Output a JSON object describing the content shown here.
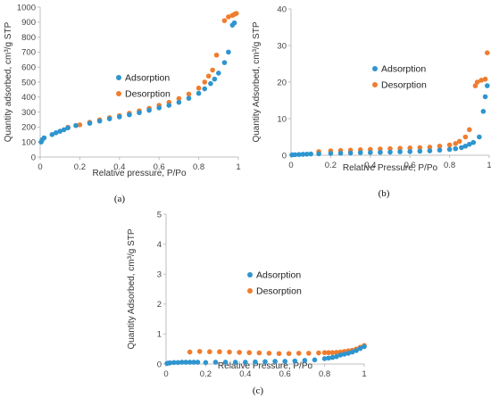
{
  "colors": {
    "adsorption": "#2e95cf",
    "desorption": "#ef7d2e",
    "axis": "#bfbfbf"
  },
  "chart_data": [
    {
      "type": "scatter",
      "panel_label": "(a)",
      "xlabel": "Relative pressure, P/Po",
      "ylabel": "Quantity adsorbed, cm³/g STP",
      "xlim": [
        0,
        1
      ],
      "ylim": [
        0,
        1000
      ],
      "x_ticks": [
        "0",
        "0.2",
        "0.4",
        "0.6",
        "0.8",
        "1"
      ],
      "y_ticks": [
        "0",
        "100",
        "200",
        "300",
        "400",
        "500",
        "600",
        "700",
        "800",
        "900",
        "1000"
      ],
      "legend": {
        "position": "center-left",
        "entries": [
          "Adsorption",
          "Desorption"
        ]
      },
      "series": [
        {
          "name": "Adsorption",
          "x": [
            0.005,
            0.01,
            0.02,
            0.06,
            0.08,
            0.1,
            0.12,
            0.14,
            0.18,
            0.25,
            0.3,
            0.35,
            0.4,
            0.45,
            0.5,
            0.55,
            0.6,
            0.65,
            0.7,
            0.75,
            0.8,
            0.83,
            0.86,
            0.88,
            0.9,
            0.93,
            0.95,
            0.97,
            0.98
          ],
          "y": [
            100,
            115,
            128,
            150,
            162,
            172,
            182,
            195,
            210,
            225,
            240,
            255,
            268,
            282,
            296,
            312,
            328,
            345,
            365,
            392,
            425,
            455,
            490,
            520,
            560,
            630,
            700,
            880,
            895
          ]
        },
        {
          "name": "Desorption",
          "x": [
            0.14,
            0.2,
            0.25,
            0.3,
            0.35,
            0.4,
            0.45,
            0.5,
            0.55,
            0.6,
            0.65,
            0.7,
            0.75,
            0.8,
            0.83,
            0.85,
            0.87,
            0.89,
            0.93,
            0.95,
            0.97,
            0.98,
            0.99
          ],
          "y": [
            198,
            215,
            232,
            248,
            262,
            276,
            292,
            308,
            325,
            345,
            365,
            390,
            420,
            460,
            500,
            540,
            580,
            680,
            910,
            935,
            945,
            952,
            958
          ]
        }
      ]
    },
    {
      "type": "scatter",
      "panel_label": "(b)",
      "xlabel": "Relative Pressure, P/Po",
      "ylabel": "Quantity Adsorbed, cm³/g STP",
      "xlim": [
        0,
        1
      ],
      "ylim": [
        0,
        40
      ],
      "x_ticks": [
        "0",
        "0.2",
        "0.4",
        "0.6",
        "0.8",
        "1"
      ],
      "y_ticks": [
        "0",
        "10",
        "20",
        "30",
        "40"
      ],
      "legend": {
        "position": "center-right",
        "entries": [
          "Adsorption",
          "Desorption"
        ]
      },
      "series": [
        {
          "name": "Adsorption",
          "x": [
            0.005,
            0.02,
            0.04,
            0.06,
            0.08,
            0.1,
            0.14,
            0.2,
            0.25,
            0.3,
            0.35,
            0.4,
            0.45,
            0.5,
            0.55,
            0.6,
            0.65,
            0.7,
            0.75,
            0.8,
            0.83,
            0.86,
            0.88,
            0.9,
            0.92,
            0.95,
            0.97,
            0.98,
            0.99
          ],
          "y": [
            0.1,
            0.15,
            0.2,
            0.25,
            0.3,
            0.35,
            0.4,
            0.5,
            0.55,
            0.6,
            0.7,
            0.75,
            0.8,
            0.85,
            0.95,
            1.0,
            1.1,
            1.2,
            1.4,
            1.6,
            1.8,
            2.1,
            2.5,
            3.0,
            3.5,
            5.0,
            12.0,
            16.0,
            19.0
          ]
        },
        {
          "name": "Desorption",
          "x": [
            0.14,
            0.2,
            0.25,
            0.3,
            0.35,
            0.4,
            0.45,
            0.5,
            0.55,
            0.6,
            0.65,
            0.7,
            0.75,
            0.8,
            0.83,
            0.85,
            0.88,
            0.9,
            0.93,
            0.94,
            0.96,
            0.98,
            0.99
          ],
          "y": [
            1.0,
            1.2,
            1.3,
            1.4,
            1.5,
            1.6,
            1.7,
            1.8,
            1.9,
            2.0,
            2.1,
            2.2,
            2.5,
            2.8,
            3.2,
            3.8,
            5.0,
            7.0,
            19.0,
            20.0,
            20.5,
            20.8,
            28.0
          ]
        }
      ]
    },
    {
      "type": "scatter",
      "panel_label": "(c)",
      "xlabel": "Relative Pressure, P/Po",
      "ylabel": "Quantity Adsorbed, cm³/g STP",
      "xlim": [
        0,
        1
      ],
      "ylim": [
        0,
        5
      ],
      "x_ticks": [
        "0",
        "0.2",
        "0.4",
        "0.6",
        "0.8",
        "1"
      ],
      "y_ticks": [
        "0",
        "1",
        "2",
        "3",
        "4",
        "5"
      ],
      "legend": {
        "position": "center",
        "entries": [
          "Adsorption",
          "Desorption"
        ]
      },
      "series": [
        {
          "name": "Adsorption",
          "x": [
            0.005,
            0.01,
            0.02,
            0.04,
            0.06,
            0.08,
            0.1,
            0.12,
            0.14,
            0.16,
            0.2,
            0.25,
            0.3,
            0.35,
            0.4,
            0.45,
            0.5,
            0.55,
            0.6,
            0.65,
            0.7,
            0.75,
            0.8,
            0.82,
            0.84,
            0.86,
            0.88,
            0.9,
            0.92,
            0.94,
            0.96,
            0.98,
            1.0
          ],
          "y": [
            0.02,
            0.03,
            0.04,
            0.05,
            0.05,
            0.06,
            0.06,
            0.06,
            0.06,
            0.06,
            0.05,
            0.06,
            0.06,
            0.06,
            0.06,
            0.07,
            0.08,
            0.09,
            0.09,
            0.1,
            0.12,
            0.14,
            0.18,
            0.2,
            0.22,
            0.25,
            0.3,
            0.33,
            0.36,
            0.4,
            0.45,
            0.52,
            0.58
          ]
        },
        {
          "name": "Desorption",
          "x": [
            0.12,
            0.17,
            0.22,
            0.27,
            0.32,
            0.37,
            0.42,
            0.47,
            0.52,
            0.57,
            0.62,
            0.67,
            0.72,
            0.77,
            0.8,
            0.82,
            0.84,
            0.86,
            0.88,
            0.9,
            0.92,
            0.94,
            0.96,
            0.98,
            1.0
          ],
          "y": [
            0.4,
            0.42,
            0.41,
            0.41,
            0.4,
            0.39,
            0.38,
            0.37,
            0.36,
            0.35,
            0.35,
            0.36,
            0.36,
            0.37,
            0.38,
            0.38,
            0.38,
            0.39,
            0.4,
            0.42,
            0.44,
            0.46,
            0.5,
            0.56,
            0.62
          ]
        }
      ]
    }
  ]
}
